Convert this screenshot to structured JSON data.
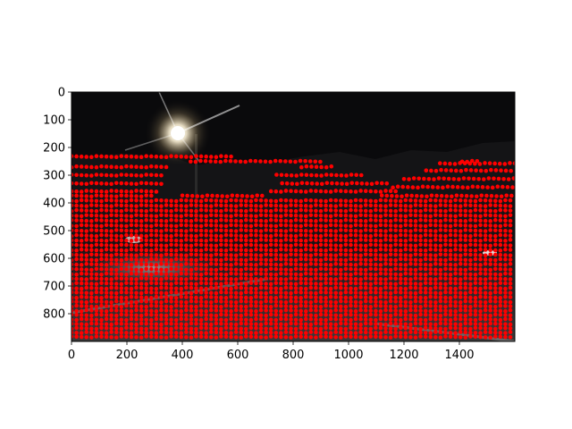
{
  "chart_data": {
    "type": "scatter",
    "title": "",
    "xlabel": "",
    "ylabel": "",
    "xlim": [
      0,
      1600
    ],
    "ylim": [
      900,
      0
    ],
    "y_axis_inverted": true,
    "grid": false,
    "legend": "none",
    "x_ticks": [
      0,
      200,
      400,
      600,
      800,
      1000,
      1200,
      1400
    ],
    "y_ticks": [
      0,
      100,
      200,
      300,
      400,
      500,
      600,
      700,
      800
    ],
    "background": "night road scene photograph (image shown in axes)",
    "marker_color": "#ff0000",
    "series": [
      {
        "description": "projected lidar points drawn as horizontal scan rows over the image",
        "rows": [
          {
            "y": 233,
            "segments": [
              [
                0,
                580
              ]
            ]
          },
          {
            "y": 250,
            "segments": [
              [
                430,
                900
              ],
              [
                1410,
                1470
              ]
            ]
          },
          {
            "y": 258,
            "segments": [
              [
                1330,
                1600
              ]
            ]
          },
          {
            "y": 270,
            "segments": [
              [
                0,
                350
              ],
              [
                830,
                950
              ]
            ]
          },
          {
            "y": 283,
            "segments": [
              [
                1280,
                1600
              ]
            ]
          },
          {
            "y": 300,
            "segments": [
              [
                0,
                340
              ],
              [
                740,
                1060
              ]
            ]
          },
          {
            "y": 313,
            "segments": [
              [
                1200,
                1600
              ]
            ]
          },
          {
            "y": 330,
            "segments": [
              [
                0,
                330
              ],
              [
                760,
                1140
              ]
            ]
          },
          {
            "y": 343,
            "segments": [
              [
                1160,
                1600
              ]
            ]
          },
          {
            "y": 358,
            "segments": [
              [
                0,
                320
              ],
              [
                720,
                1170
              ]
            ]
          },
          {
            "y": 375,
            "segments": [
              [
                0,
                300
              ],
              [
                400,
                700
              ],
              [
                1120,
                1600
              ]
            ]
          },
          {
            "y": 392,
            "segments": [
              [
                0,
                1600
              ]
            ]
          },
          {
            "y": 410,
            "segments": [
              [
                0,
                1600
              ]
            ]
          },
          {
            "y": 428,
            "segments": [
              [
                0,
                1600
              ]
            ]
          },
          {
            "y": 446,
            "segments": [
              [
                0,
                1600
              ]
            ]
          },
          {
            "y": 464,
            "segments": [
              [
                0,
                1600
              ]
            ]
          },
          {
            "y": 482,
            "segments": [
              [
                0,
                1600
              ]
            ]
          },
          {
            "y": 500,
            "segments": [
              [
                0,
                1600
              ]
            ]
          },
          {
            "y": 518,
            "segments": [
              [
                0,
                1600
              ]
            ]
          },
          {
            "y": 535,
            "segments": [
              [
                0,
                1600
              ]
            ]
          },
          {
            "y": 553,
            "segments": [
              [
                0,
                1600
              ]
            ]
          },
          {
            "y": 570,
            "segments": [
              [
                0,
                1600
              ]
            ]
          },
          {
            "y": 588,
            "segments": [
              [
                0,
                1600
              ]
            ]
          },
          {
            "y": 605,
            "segments": [
              [
                0,
                1600
              ]
            ]
          },
          {
            "y": 622,
            "segments": [
              [
                0,
                1600
              ]
            ]
          },
          {
            "y": 640,
            "segments": [
              [
                0,
                1600
              ]
            ]
          },
          {
            "y": 657,
            "segments": [
              [
                0,
                1600
              ]
            ]
          },
          {
            "y": 674,
            "segments": [
              [
                0,
                1600
              ]
            ]
          },
          {
            "y": 691,
            "segments": [
              [
                0,
                1600
              ]
            ]
          },
          {
            "y": 708,
            "segments": [
              [
                0,
                1600
              ]
            ]
          },
          {
            "y": 724,
            "segments": [
              [
                0,
                1600
              ]
            ]
          },
          {
            "y": 741,
            "segments": [
              [
                0,
                1600
              ]
            ]
          },
          {
            "y": 757,
            "segments": [
              [
                0,
                1600
              ]
            ]
          },
          {
            "y": 773,
            "segments": [
              [
                0,
                1600
              ]
            ]
          },
          {
            "y": 789,
            "segments": [
              [
                0,
                1600
              ]
            ]
          },
          {
            "y": 805,
            "segments": [
              [
                0,
                1600
              ]
            ]
          },
          {
            "y": 821,
            "segments": [
              [
                0,
                1600
              ]
            ]
          },
          {
            "y": 837,
            "segments": [
              [
                0,
                1600
              ]
            ]
          },
          {
            "y": 853,
            "segments": [
              [
                0,
                1600
              ]
            ]
          },
          {
            "y": 868,
            "segments": [
              [
                0,
                1600
              ]
            ]
          },
          {
            "y": 884,
            "segments": [
              [
                0,
                1600
              ]
            ]
          }
        ]
      }
    ]
  }
}
